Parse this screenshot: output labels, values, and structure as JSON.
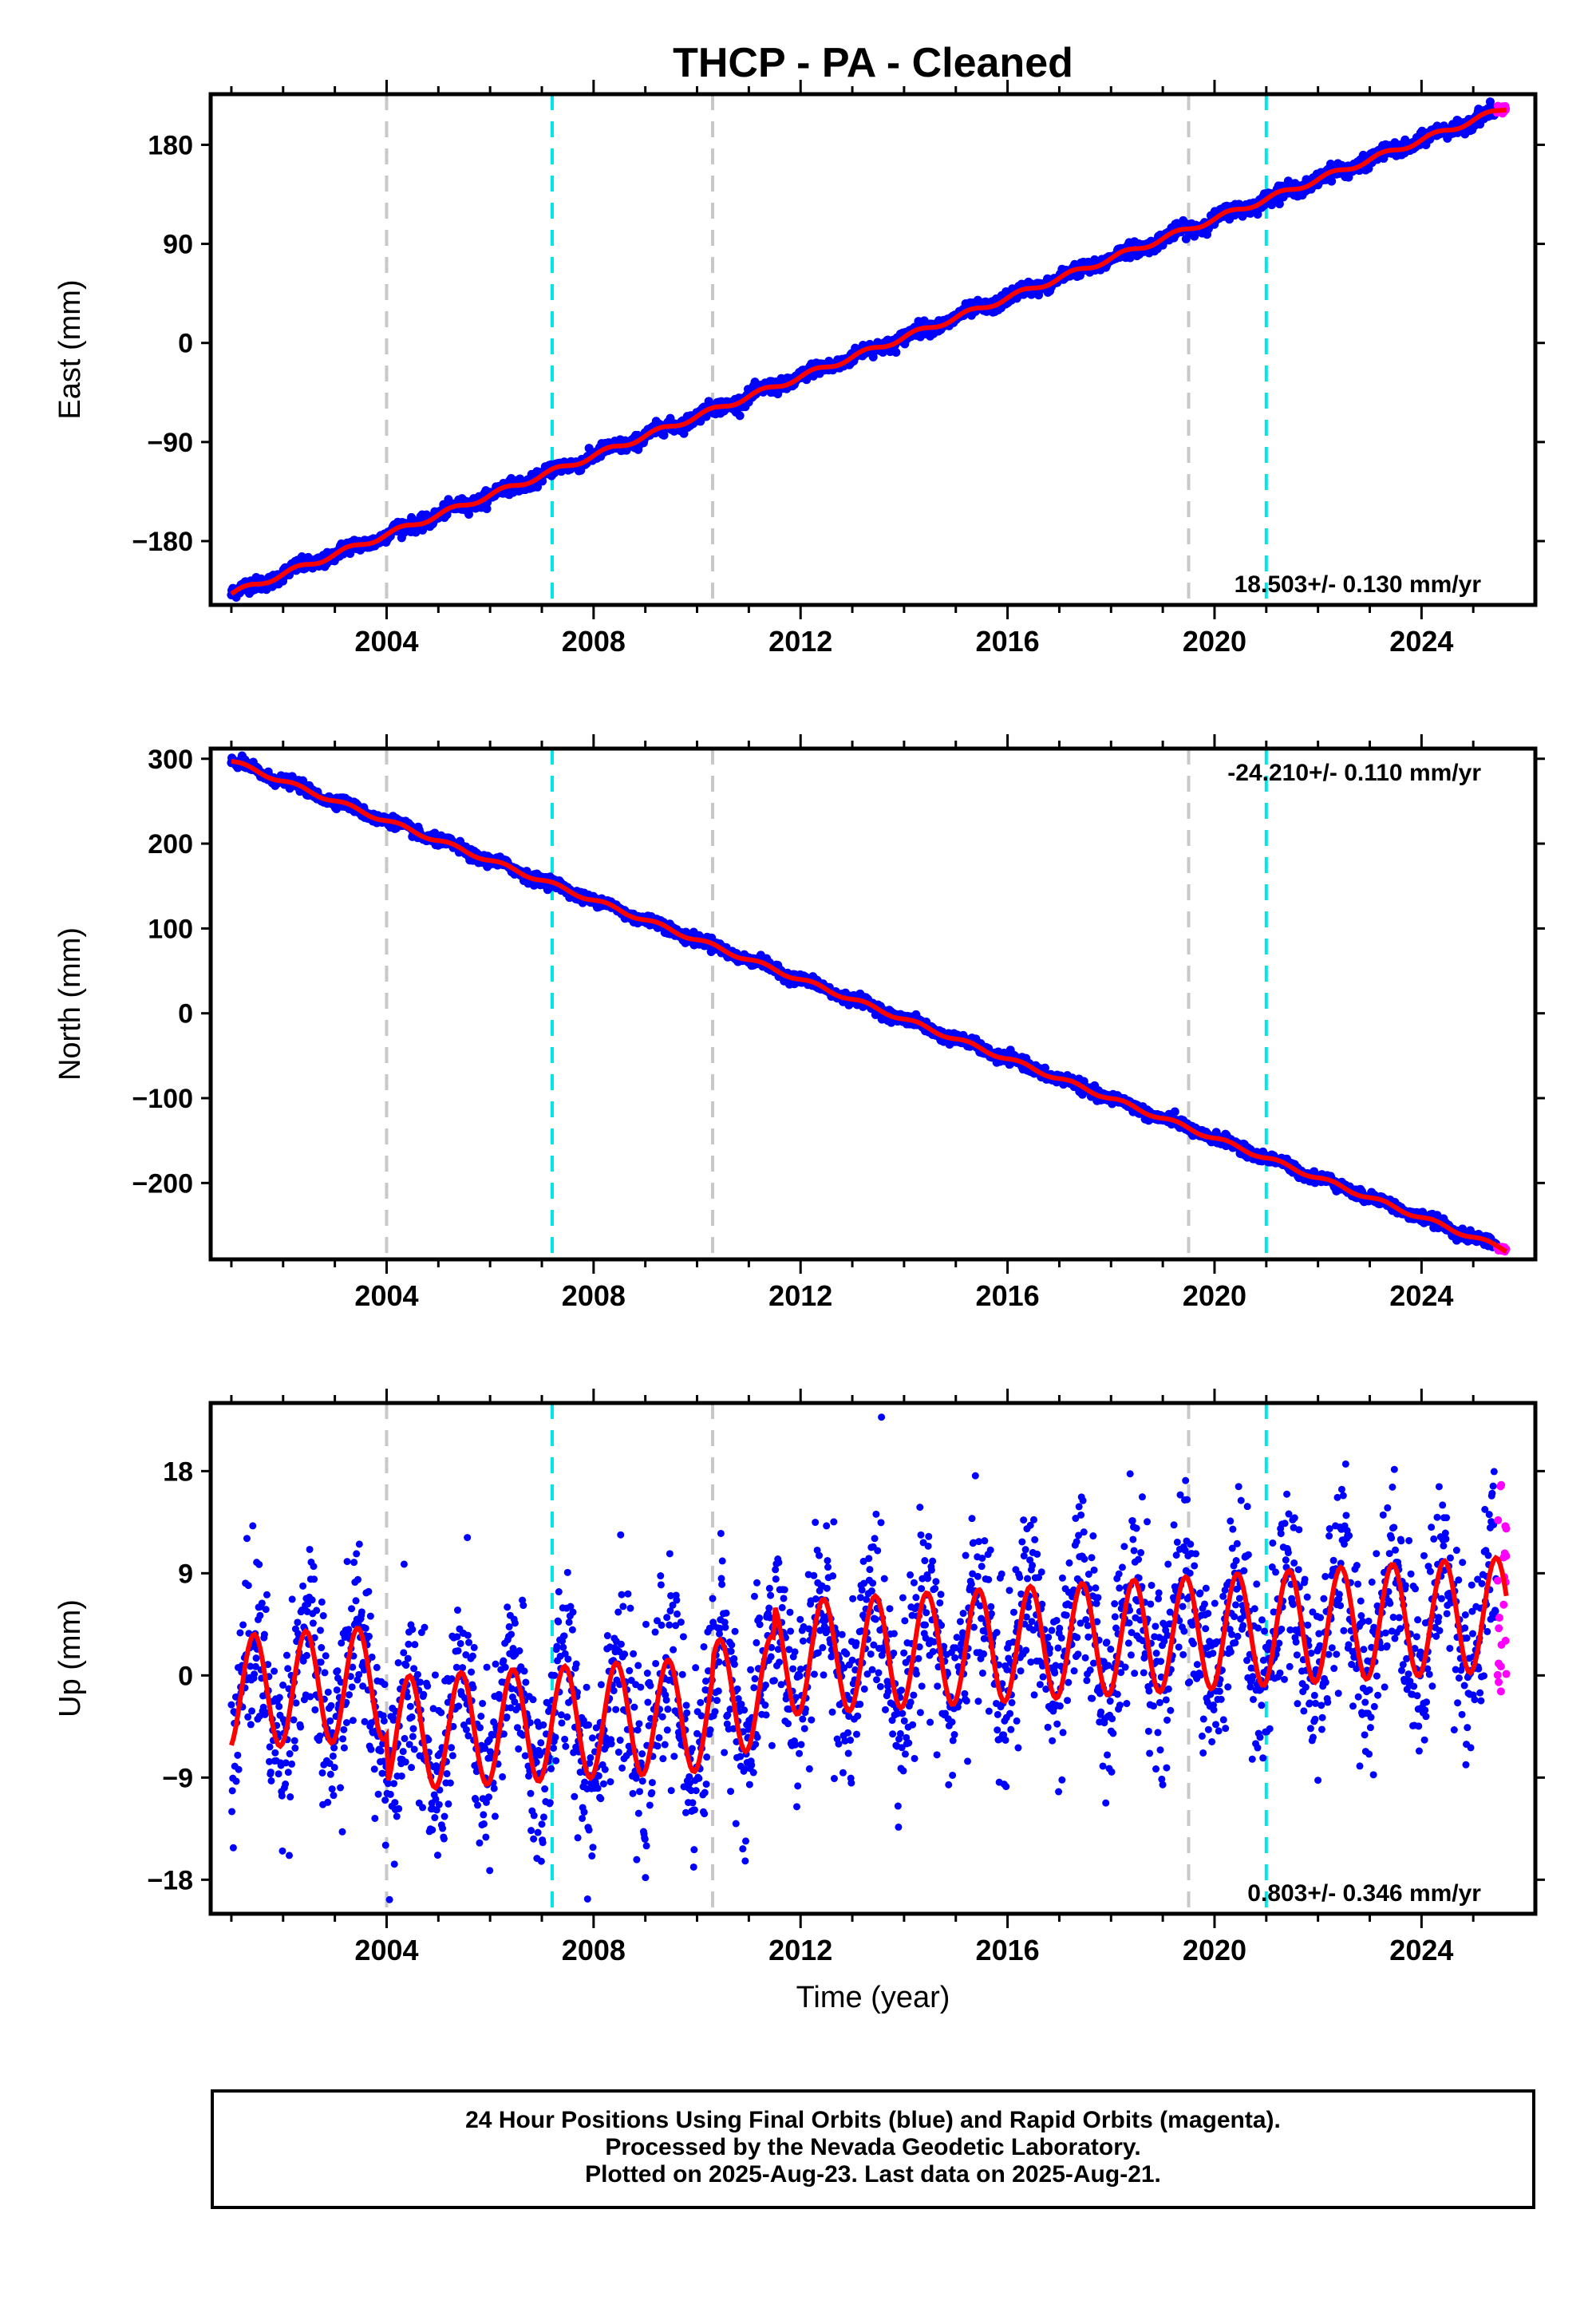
{
  "title": "THCP  - PA - Cleaned",
  "xlabel": "Time (year)",
  "caption": {
    "line1": "24 Hour Positions Using Final Orbits (blue) and Rapid Orbits (magenta).",
    "line2": "Processed by the Nevada Geodetic Laboratory.",
    "line3": "Plotted on 2025-Aug-23. Last data on 2025-Aug-21."
  },
  "colors": {
    "final_orbits": "#0000ff",
    "rapid_orbits": "#ff00ff",
    "model_fit": "#ff0000",
    "equipment_change": "#c8c8c8",
    "earthquake": "#00e5e5"
  },
  "chart_data": [
    {
      "type": "scatter",
      "panel": "east",
      "ylabel": "East (mm)",
      "rate_label": "18.503+/- 0.130 mm/yr",
      "xlim": [
        2000.6,
        2026.2
      ],
      "ylim": [
        -238,
        226
      ],
      "yticks": [
        -180,
        -90,
        0,
        90,
        180
      ],
      "xticks": [
        2004,
        2008,
        2012,
        2016,
        2020,
        2024
      ],
      "gray_lines": [
        2004.0,
        2010.3,
        2019.5
      ],
      "cyan_lines": [
        2007.2,
        2021.0
      ],
      "series": [
        {
          "kind": "trend",
          "rate": 18.503,
          "start": [
            2001.0,
            -228
          ],
          "end": [
            2025.6,
            213
          ],
          "noise": 3
        },
        {
          "kind": "rapid",
          "x_range": [
            2025.45,
            2025.64
          ],
          "y_range": [
            208,
            216
          ]
        }
      ]
    },
    {
      "type": "scatter",
      "panel": "north",
      "ylabel": "North (mm)",
      "rate_label": "-24.210+/- 0.110 mm/yr",
      "xlim": [
        2000.6,
        2026.2
      ],
      "ylim": [
        -290,
        312
      ],
      "yticks": [
        -200,
        -100,
        0,
        100,
        200,
        300
      ],
      "xticks": [
        2004,
        2008,
        2012,
        2016,
        2020,
        2024
      ],
      "gray_lines": [
        2004.0,
        2010.3,
        2019.5
      ],
      "cyan_lines": [
        2007.2,
        2021.0
      ],
      "series": [
        {
          "kind": "trend",
          "rate": -24.21,
          "start": [
            2001.0,
            297
          ],
          "end": [
            2025.6,
            -278
          ],
          "noise": 3
        },
        {
          "kind": "rapid",
          "x_range": [
            2025.45,
            2025.64
          ],
          "y_range": [
            -281,
            -275
          ]
        }
      ]
    },
    {
      "type": "scatter",
      "panel": "up",
      "ylabel": "Up (mm)",
      "rate_label": "0.803+/- 0.346 mm/yr",
      "xlim": [
        2000.6,
        2026.2
      ],
      "ylim": [
        -21,
        24
      ],
      "yticks": [
        -18,
        -9,
        0,
        9,
        18
      ],
      "xticks": [
        2004,
        2008,
        2012,
        2016,
        2020,
        2024
      ],
      "gray_lines": [
        2004.0,
        2010.3,
        2019.5
      ],
      "cyan_lines": [
        2007.2,
        2021.0
      ],
      "series": [
        {
          "kind": "seasonal",
          "rate": 0.803,
          "amplitude": 5,
          "offset_2001": -1.5,
          "noise": 4
        },
        {
          "kind": "rapid",
          "x_range": [
            2025.45,
            2025.64
          ],
          "y_range": [
            -3,
            17
          ]
        }
      ]
    }
  ]
}
